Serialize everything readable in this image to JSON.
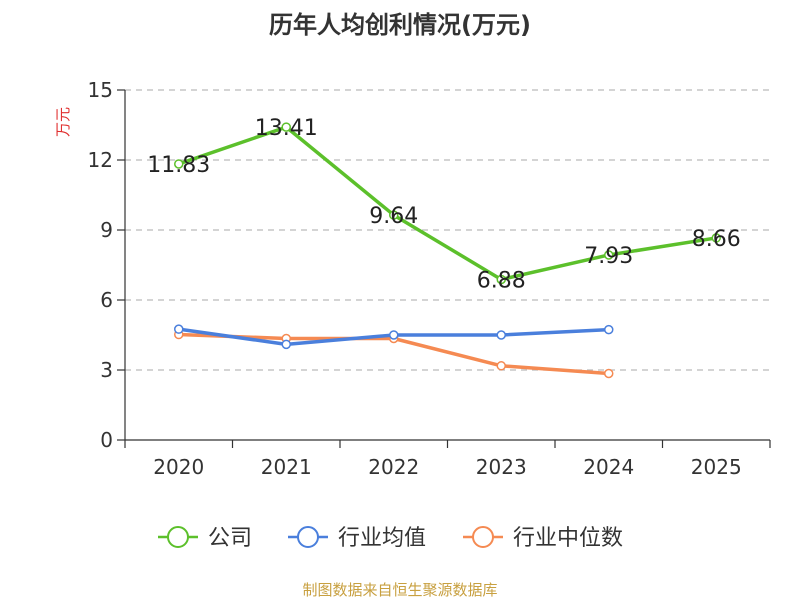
{
  "colors": {
    "company": "#5cc02b",
    "industry_avg": "#4a7fdc",
    "industry_median": "#f58a52",
    "axis": "#333333",
    "grid": "#bbbbbb",
    "ylabel": "#e03030",
    "source": "#c8a040"
  },
  "chart_data": {
    "type": "line",
    "title": "历年人均创利情况(万元)",
    "ylabel": "万元",
    "xlabel": "",
    "categories": [
      "2020",
      "2021",
      "2022",
      "2023",
      "2024",
      "2025"
    ],
    "ylim": [
      0,
      15
    ],
    "yticks": [
      0,
      3,
      6,
      9,
      12,
      15
    ],
    "grid": true,
    "legend_position": "bottom",
    "series": [
      {
        "name": "公司",
        "key": "company",
        "values": [
          11.83,
          13.41,
          9.64,
          6.88,
          7.93,
          8.66
        ],
        "labels": [
          "11.83",
          "13.41",
          "9.64",
          "6.88",
          "7.93",
          "8.66"
        ]
      },
      {
        "name": "行业均值",
        "key": "industry_avg",
        "values": [
          4.75,
          4.1,
          4.5,
          4.5,
          4.73,
          null
        ]
      },
      {
        "name": "行业中位数",
        "key": "industry_median",
        "values": [
          4.52,
          4.35,
          4.35,
          3.18,
          2.85,
          null
        ]
      }
    ]
  },
  "source": "制图数据来自恒生聚源数据库"
}
